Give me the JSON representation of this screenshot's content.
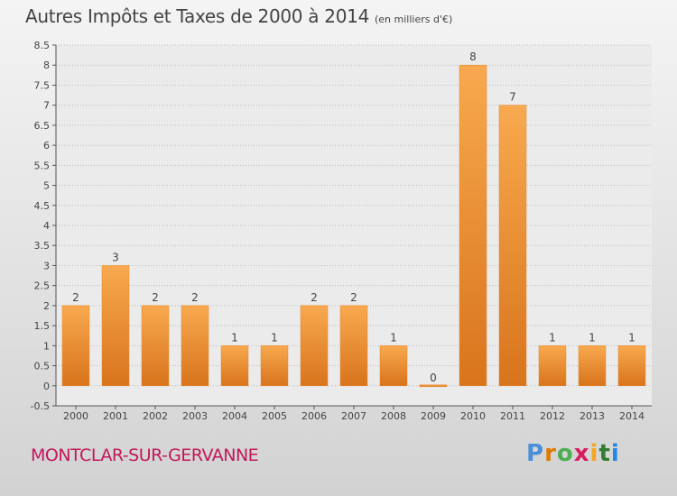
{
  "header": {
    "title": "Autres Impôts et Taxes de 2000 à 2014",
    "unit": "(en milliers d'€)"
  },
  "commune": "MONTCLAR-SUR-GERVANNE",
  "logo": {
    "letters": [
      "P",
      "r",
      "o",
      "x",
      "i",
      "t",
      "i"
    ],
    "colors": [
      "#4a90d9",
      "#e07b00",
      "#4caf50",
      "#d81b60",
      "#f5a623",
      "#2e7d32",
      "#1e88e5"
    ]
  },
  "colors": {
    "bar_top": "#f8a94f",
    "bar_bottom": "#d8741c",
    "grid": "#bbbbbb",
    "axis": "#555555",
    "label": "#444444"
  },
  "chart_data": {
    "type": "bar",
    "title": "Autres Impôts et Taxes de 2000 à 2014",
    "subtitle": "(en milliers d'€)",
    "categories": [
      "2000",
      "2001",
      "2002",
      "2003",
      "2004",
      "2005",
      "2006",
      "2007",
      "2008",
      "2009",
      "2010",
      "2011",
      "2012",
      "2013",
      "2014"
    ],
    "values": [
      2,
      3,
      2,
      2,
      1,
      1,
      2,
      2,
      1,
      0,
      8,
      7,
      1,
      1,
      1
    ],
    "data_labels": [
      "2",
      "3",
      "2",
      "2",
      "1",
      "1",
      "2",
      "2",
      "1",
      "0",
      "8",
      "7",
      "1",
      "1",
      "1"
    ],
    "ylim": [
      -0.5,
      8.5
    ],
    "yticks": [
      "-0.5",
      "0",
      "0.5",
      "1",
      "1.5",
      "2",
      "2.5",
      "3",
      "3.5",
      "4",
      "4.5",
      "5",
      "5.5",
      "6",
      "6.5",
      "7",
      "7.5",
      "8",
      "8.5"
    ],
    "grid": true,
    "legend": "none"
  }
}
